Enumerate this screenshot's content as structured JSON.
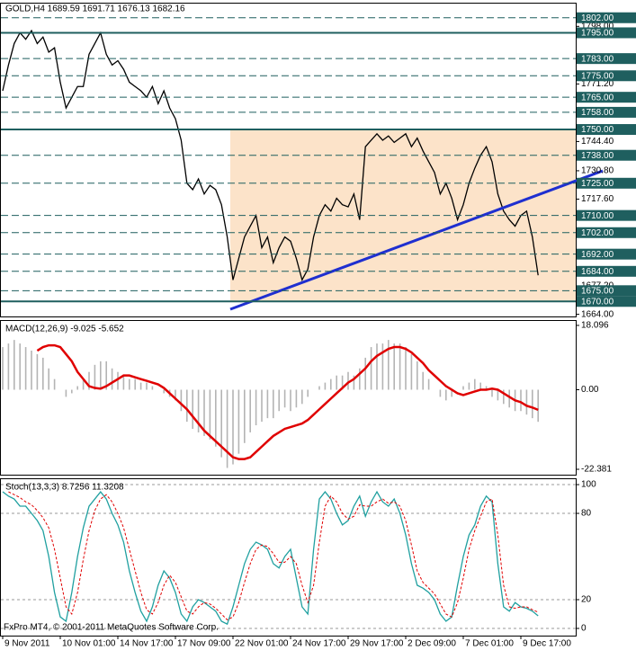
{
  "chart_data": [
    {
      "type": "line",
      "title": "GOLD,H4  1689.59 1691.71 1676.13 1682.16",
      "ylim": [
        1663,
        1809
      ],
      "yticks": [
        {
          "value": 1798,
          "label": "1798.00"
        },
        {
          "value": 1771.2,
          "label": "1771.20"
        },
        {
          "value": 1744.4,
          "label": "1744.40"
        },
        {
          "value": 1730.8,
          "label": "1730.80"
        },
        {
          "value": 1717.6,
          "label": "1717.60"
        },
        {
          "value": 1677.2,
          "label": "1677.20"
        },
        {
          "value": 1664,
          "label": "1664.00"
        }
      ],
      "levels": [
        {
          "value": 1802,
          "label": "1802.00",
          "style": "dashed"
        },
        {
          "value": 1795,
          "label": "1795.00",
          "style": "solid"
        },
        {
          "value": 1783,
          "label": "1783.00",
          "style": "dashed"
        },
        {
          "value": 1775,
          "label": "1775.00",
          "style": "dashed"
        },
        {
          "value": 1765,
          "label": "1765.00",
          "style": "dashed"
        },
        {
          "value": 1758,
          "label": "1758.00",
          "style": "dashed"
        },
        {
          "value": 1750,
          "label": "1750.00",
          "style": "solid"
        },
        {
          "value": 1738,
          "label": "1738.00",
          "style": "dashed"
        },
        {
          "value": 1725,
          "label": "1725.00",
          "style": "dashed"
        },
        {
          "value": 1710,
          "label": "1710.00",
          "style": "dashed"
        },
        {
          "value": 1702,
          "label": "1702.00",
          "style": "dashed"
        },
        {
          "value": 1692,
          "label": "1692.00",
          "style": "dashed"
        },
        {
          "value": 1684,
          "label": "1684.00",
          "style": "dashed"
        },
        {
          "value": 1675,
          "label": "1675.00",
          "style": "dashed"
        },
        {
          "value": 1670,
          "label": "1670.00",
          "style": "solid"
        }
      ],
      "series": [
        {
          "color": "#000000",
          "style": "line",
          "values": [
            1768,
            1780,
            1790,
            1795,
            1792,
            1796,
            1790,
            1793,
            1786,
            1788,
            1772,
            1760,
            1765,
            1770,
            1770,
            1785,
            1790,
            1795,
            1785,
            1780,
            1782,
            1778,
            1772,
            1770,
            1768,
            1765,
            1770,
            1762,
            1768,
            1760,
            1755,
            1745,
            1725,
            1722,
            1727,
            1720,
            1724,
            1722,
            1715,
            1700,
            1680,
            1690,
            1700,
            1705,
            1710,
            1695,
            1700,
            1688,
            1695,
            1700,
            1698,
            1690,
            1680,
            1685,
            1700,
            1710,
            1715,
            1712,
            1718,
            1715,
            1714,
            1720,
            1708,
            1742,
            1745,
            1748,
            1745,
            1747,
            1744,
            1746,
            1748,
            1742,
            1746,
            1740,
            1735,
            1730,
            1720,
            1725,
            1718,
            1708,
            1715,
            1725,
            1732,
            1738,
            1742,
            1735,
            1720,
            1712,
            1708,
            1705,
            1710,
            1712,
            1700,
            1682.16
          ]
        }
      ]
    },
    {
      "type": "line",
      "title": "MACD(12,26,9) -9.025 -5.652",
      "ylim": [
        -23.9,
        19.6
      ],
      "yticks": [
        {
          "value": 18.096,
          "label": "18.096"
        },
        {
          "value": 0,
          "label": "0.00"
        },
        {
          "value": -22.381,
          "label": "-22.381"
        }
      ],
      "series": [
        {
          "color": "#b4b4b4",
          "style": "bar",
          "values": [
            12,
            13,
            14,
            13,
            12,
            11,
            10,
            9,
            6,
            3,
            0,
            -2,
            -1,
            1,
            3,
            5,
            7,
            8,
            8,
            6,
            5,
            4,
            3,
            3,
            2,
            2,
            1,
            0,
            -1,
            -2,
            -3,
            -6,
            -9,
            -11,
            -12,
            -13,
            -14,
            -16,
            -19,
            -22,
            -21,
            -18,
            -15,
            -12,
            -10,
            -9,
            -8,
            -8,
            -6,
            -5,
            -6,
            -5,
            -4,
            -2,
            0,
            1,
            2,
            3,
            4,
            4,
            5,
            4,
            6,
            9,
            12,
            13,
            13,
            14,
            13,
            13,
            12,
            10,
            8,
            5,
            3,
            0,
            -2,
            -3,
            -2,
            0,
            1,
            2,
            3,
            2,
            1,
            -2,
            -3,
            -4,
            -5,
            -6,
            -6,
            -7,
            -8,
            -9.025
          ]
        },
        {
          "color": "#e00000",
          "style": "line",
          "values": [
            null,
            null,
            null,
            null,
            null,
            null,
            11,
            12,
            12.5,
            12.5,
            12,
            10,
            8,
            5,
            3,
            1,
            0.5,
            0.3,
            1,
            2,
            3,
            4,
            4,
            3.5,
            3,
            2.5,
            2,
            1.5,
            0.5,
            -1,
            -2.5,
            -4,
            -5.5,
            -7.5,
            -9.5,
            -11.5,
            -13,
            -14.5,
            -16,
            -17.5,
            -19,
            -19.5,
            -19.5,
            -19,
            -17.5,
            -16,
            -14.5,
            -13,
            -12,
            -11,
            -10.5,
            -10,
            -9.5,
            -8.5,
            -7,
            -5.5,
            -4,
            -2.5,
            -1,
            0.5,
            2,
            3,
            4.5,
            6,
            8,
            9.5,
            10.5,
            11.5,
            12,
            12,
            11.5,
            10.5,
            9,
            7.5,
            5.5,
            4,
            2.5,
            1,
            0,
            -1,
            -1.5,
            -1,
            -0.5,
            0,
            0,
            0.3,
            0,
            -1,
            -2,
            -3,
            -3.5,
            -4.5,
            -5,
            -5.652
          ]
        }
      ]
    },
    {
      "type": "line",
      "title": "Stoch(13,3,3) 8.7256 11.3208",
      "annotation": "FxPro MT4, © 2001-2011 MetaQuotes Software Corp.",
      "ylim": [
        -5,
        104.4
      ],
      "yticks": [
        100,
        80,
        20,
        0
      ],
      "grid": true,
      "categories": [
        "9 Nov 2011",
        null,
        null,
        null,
        null,
        null,
        null,
        null,
        null,
        null,
        "10 Nov 01:00",
        null,
        null,
        null,
        null,
        null,
        null,
        null,
        null,
        null,
        "14 Nov 17:00",
        null,
        null,
        null,
        null,
        null,
        null,
        null,
        null,
        null,
        "17 Nov 09:00",
        null,
        null,
        null,
        null,
        null,
        null,
        null,
        null,
        null,
        "22 Nov 01:00",
        null,
        null,
        null,
        null,
        null,
        null,
        null,
        null,
        null,
        "24 Nov 17:00",
        null,
        null,
        null,
        null,
        null,
        null,
        null,
        null,
        null,
        "29 Nov 17:00",
        null,
        null,
        null,
        null,
        null,
        null,
        null,
        null,
        null,
        "2 Dec 09:00",
        null,
        null,
        null,
        null,
        null,
        null,
        null,
        null,
        null,
        "7 Dec 01:00",
        null,
        null,
        null,
        null,
        null,
        null,
        null,
        null,
        null,
        "9 Dec 17:00",
        null,
        null,
        null
      ],
      "series": [
        {
          "color": "#20a0a0",
          "style": "line",
          "values": [
            95,
            92,
            90,
            85,
            85,
            80,
            75,
            68,
            50,
            25,
            8,
            5,
            25,
            50,
            70,
            85,
            90,
            95,
            90,
            80,
            72,
            60,
            40,
            25,
            12,
            5,
            15,
            30,
            40,
            35,
            25,
            10,
            5,
            15,
            20,
            18,
            15,
            12,
            5,
            3,
            15,
            30,
            45,
            55,
            60,
            58,
            55,
            45,
            42,
            50,
            55,
            35,
            15,
            10,
            55,
            90,
            95,
            90,
            80,
            72,
            75,
            85,
            92,
            78,
            88,
            95,
            88,
            85,
            90,
            80,
            65,
            45,
            30,
            28,
            25,
            20,
            10,
            5,
            8,
            30,
            50,
            65,
            72,
            85,
            92,
            88,
            45,
            15,
            12,
            18,
            15,
            14,
            12,
            8.7256
          ]
        },
        {
          "color": "#e00000",
          "style": "dashed",
          "values": [
            null,
            95,
            93,
            91,
            88,
            86,
            82,
            77,
            70,
            55,
            35,
            15,
            10,
            25,
            48,
            68,
            82,
            90,
            93,
            88,
            80,
            70,
            55,
            40,
            25,
            13,
            10,
            18,
            30,
            37,
            32,
            22,
            12,
            10,
            15,
            18,
            17,
            14,
            10,
            6,
            8,
            18,
            32,
            45,
            55,
            58,
            57,
            52,
            46,
            46,
            50,
            45,
            30,
            18,
            30,
            60,
            85,
            92,
            88,
            80,
            76,
            78,
            86,
            85,
            85,
            88,
            90,
            87,
            88,
            85,
            75,
            58,
            40,
            32,
            28,
            24,
            17,
            10,
            8,
            18,
            35,
            55,
            68,
            78,
            88,
            90,
            65,
            30,
            15,
            14,
            15,
            15,
            13,
            11.3208
          ]
        }
      ]
    }
  ]
}
